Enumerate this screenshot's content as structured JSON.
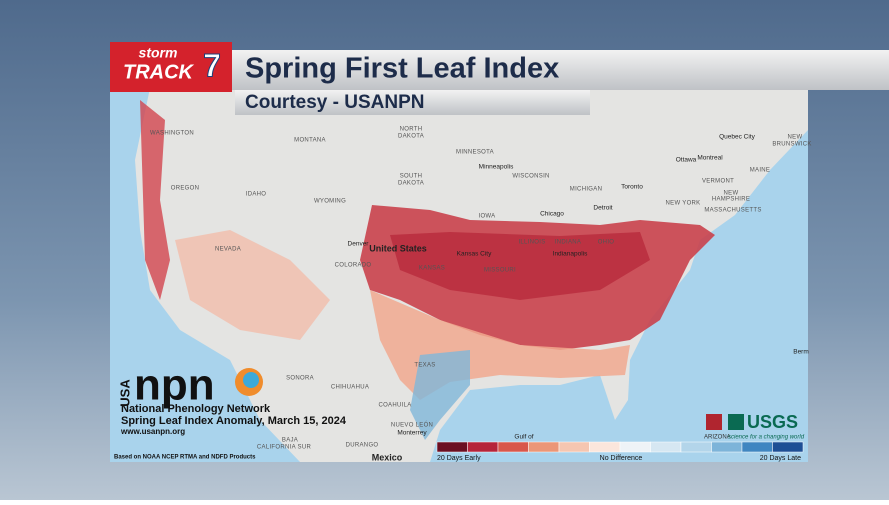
{
  "header": {
    "logo": {
      "line1": "storm",
      "line2": "TRACK",
      "number": "7"
    },
    "title": "Spring First Leaf Index",
    "subtitle": "Courtesy - USANPN"
  },
  "map": {
    "labels": [
      "WASHINGTON",
      "MONTANA",
      "NORTH",
      "DAKOTA",
      "MINNESOTA",
      "Minneapolis",
      "WISCONSIN",
      "MICHIGAN",
      "Toronto",
      "Ottawa",
      "Montreal",
      "Quebec City",
      "NEW",
      "BRUNSWICK",
      "MAINE",
      "VERMONT",
      "NEW",
      "HAMPSHIRE",
      "MASSACHUSETTS",
      "NEW YORK",
      "Detroit",
      "Chicago",
      "IOWA",
      "SOUTH",
      "DAKOTA",
      "OREGON",
      "IDAHO",
      "WYOMING",
      "Denver",
      "United States",
      "COLORADO",
      "NEVADA",
      "Kansas City",
      "KANSAS",
      "MISSOURI",
      "ILLINOIS",
      "INDIANA",
      "Indianapolis",
      "OHIO",
      "TEXAS",
      "SONORA",
      "CHIHUAHUA",
      "COAHUILA",
      "NUEVO LEÓN",
      "Monterrey",
      "BAJA",
      "CALIFORNIA SUR",
      "DURANGO",
      "Mexico",
      "Berm",
      "Gulf of"
    ]
  },
  "credit": {
    "acronym": "USA",
    "logo": "npn",
    "org": "National Phenology Network",
    "caption": "Spring Leaf Index Anomaly, March 15, 2024",
    "url": "www.usanpn.org"
  },
  "legend": {
    "low": "20 Days Early",
    "mid": "No Difference",
    "high": "20 Days Late"
  },
  "source": "Based on NOAA NCEP RTMA and NDFD Products",
  "partners": {
    "usgs": "USGS",
    "arizona": "ARIZONA",
    "tagline": "science for a changing world"
  }
}
